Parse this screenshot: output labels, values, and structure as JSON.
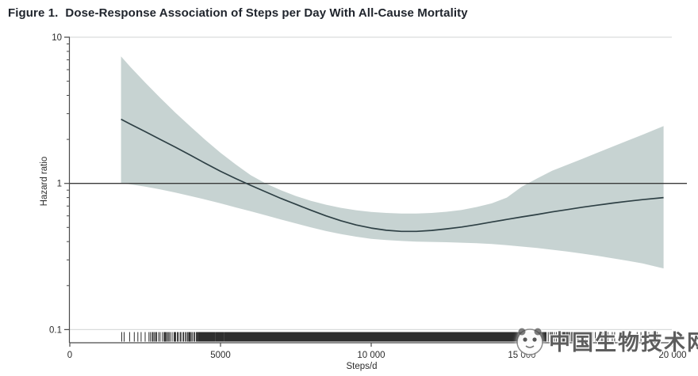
{
  "figure": {
    "label": "Figure 1.",
    "title": "Dose-Response Association of Steps per Day With All-Cause Mortality"
  },
  "watermark": {
    "text": "中国生物技术网"
  },
  "chart_data": {
    "type": "line",
    "title": "Dose-Response Association of Steps per Day With All-Cause Mortality",
    "xlabel": "Steps/d",
    "ylabel": "Hazard ratio",
    "x_axis": {
      "min": 0,
      "max": 20000,
      "ticks": [
        {
          "value": 0,
          "label": "0"
        },
        {
          "value": 5000,
          "label": "5000"
        },
        {
          "value": 10000,
          "label": "10 000"
        },
        {
          "value": 15000,
          "label": "15 000"
        },
        {
          "value": 20000,
          "label": "20 000"
        }
      ]
    },
    "y_axis": {
      "scale": "log",
      "min": 0.1,
      "max": 10,
      "ticks": [
        {
          "value": 10,
          "label": "10"
        },
        {
          "value": 1,
          "label": "1"
        },
        {
          "value": 0.1,
          "label": "0.1"
        }
      ],
      "minor_ticks": [
        9,
        8,
        7,
        6,
        5,
        4,
        3,
        2,
        0.9,
        0.8,
        0.7,
        0.6,
        0.5,
        0.4,
        0.3,
        0.2
      ]
    },
    "reference_line_hr": 1,
    "steps": [
      1700,
      2000,
      2500,
      3000,
      3500,
      4000,
      4500,
      5000,
      5500,
      6000,
      6500,
      7000,
      7500,
      8000,
      8500,
      9000,
      9500,
      10000,
      10500,
      11000,
      11500,
      12000,
      12500,
      13000,
      13500,
      14000,
      14500,
      15000,
      15500,
      16000,
      16500,
      17000,
      17500,
      18000,
      18500,
      19000,
      19700
    ],
    "series": [
      {
        "name": "hazard_ratio",
        "values": [
          2.75,
          2.55,
          2.26,
          2.0,
          1.77,
          1.56,
          1.37,
          1.21,
          1.08,
          0.97,
          0.875,
          0.79,
          0.72,
          0.655,
          0.6,
          0.555,
          0.52,
          0.495,
          0.478,
          0.47,
          0.47,
          0.477,
          0.489,
          0.503,
          0.522,
          0.545,
          0.567,
          0.59,
          0.613,
          0.638,
          0.662,
          0.687,
          0.71,
          0.733,
          0.754,
          0.774,
          0.8
        ]
      },
      {
        "name": "ci_lower_95",
        "values": [
          1.01,
          0.985,
          0.95,
          0.91,
          0.865,
          0.82,
          0.775,
          0.73,
          0.685,
          0.645,
          0.605,
          0.567,
          0.532,
          0.5,
          0.472,
          0.45,
          0.432,
          0.418,
          0.41,
          0.404,
          0.4,
          0.398,
          0.396,
          0.393,
          0.39,
          0.385,
          0.378,
          0.37,
          0.362,
          0.352,
          0.342,
          0.331,
          0.32,
          0.308,
          0.296,
          0.284,
          0.262
        ]
      },
      {
        "name": "ci_upper_95",
        "values": [
          7.4,
          6.3,
          4.9,
          3.85,
          3.05,
          2.45,
          1.98,
          1.62,
          1.35,
          1.14,
          1.0,
          0.9,
          0.82,
          0.76,
          0.715,
          0.68,
          0.655,
          0.638,
          0.628,
          0.622,
          0.622,
          0.628,
          0.64,
          0.658,
          0.69,
          0.73,
          0.8,
          0.95,
          1.08,
          1.22,
          1.34,
          1.47,
          1.62,
          1.78,
          1.96,
          2.15,
          2.47
        ]
      }
    ],
    "rug": {
      "min": 1700,
      "max": 19700,
      "seed": 1337,
      "segments": [
        {
          "from": 1700,
          "to": 2600,
          "gap": 130
        },
        {
          "from": 2600,
          "to": 4200,
          "gap": 48
        },
        {
          "from": 4200,
          "to": 5200,
          "gap": 18
        },
        {
          "from": 5200,
          "to": 14200,
          "gap": 8
        },
        {
          "from": 14200,
          "to": 15800,
          "gap": 11
        },
        {
          "from": 15800,
          "to": 17000,
          "gap": 45
        },
        {
          "from": 17000,
          "to": 18200,
          "gap": 110
        },
        {
          "from": 18200,
          "to": 19700,
          "gap": 210
        }
      ]
    },
    "colors": {
      "band": "#c5d1d0",
      "line": "#2e4045",
      "reference_line": "#3a3a3a",
      "axis": "#4a4a4a",
      "gridline": "#d9dcdc",
      "tick_label": "#2b2b2b",
      "title": "#20252d",
      "rug": "#111111"
    }
  }
}
